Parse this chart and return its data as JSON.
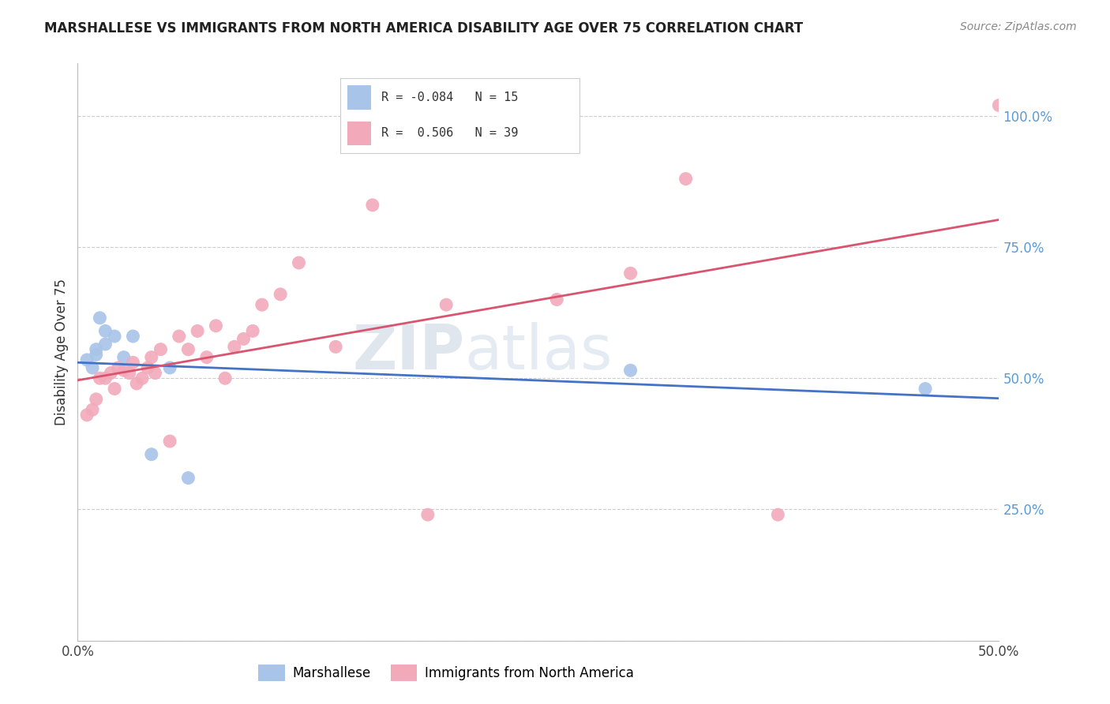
{
  "title": "MARSHALLESE VS IMMIGRANTS FROM NORTH AMERICA DISABILITY AGE OVER 75 CORRELATION CHART",
  "source": "Source: ZipAtlas.com",
  "ylabel_label": "Disability Age Over 75",
  "x_min": 0.0,
  "x_max": 0.5,
  "y_min": 0.0,
  "y_max": 1.1,
  "x_ticks": [
    0.0,
    0.1,
    0.2,
    0.3,
    0.4,
    0.5
  ],
  "y_ticks": [
    0.0,
    0.25,
    0.5,
    0.75,
    1.0
  ],
  "y_tick_labels": [
    "",
    "25.0%",
    "50.0%",
    "75.0%",
    "100.0%"
  ],
  "legend_blue_label": "Marshallese",
  "legend_pink_label": "Immigrants from North America",
  "R_blue": -0.084,
  "N_blue": 15,
  "R_pink": 0.506,
  "N_pink": 39,
  "blue_color": "#A8C4E8",
  "pink_color": "#F2AABB",
  "blue_line_color": "#4472C4",
  "pink_line_color": "#D9546E",
  "watermark_zip": "ZIP",
  "watermark_atlas": "atlas",
  "blue_scatter_x": [
    0.005,
    0.008,
    0.01,
    0.01,
    0.012,
    0.015,
    0.015,
    0.02,
    0.025,
    0.03,
    0.04,
    0.05,
    0.06,
    0.3,
    0.46
  ],
  "blue_scatter_y": [
    0.535,
    0.52,
    0.545,
    0.555,
    0.615,
    0.59,
    0.565,
    0.58,
    0.54,
    0.58,
    0.355,
    0.52,
    0.31,
    0.515,
    0.48
  ],
  "pink_scatter_x": [
    0.005,
    0.008,
    0.01,
    0.012,
    0.015,
    0.018,
    0.02,
    0.022,
    0.025,
    0.028,
    0.03,
    0.032,
    0.035,
    0.038,
    0.04,
    0.042,
    0.045,
    0.05,
    0.055,
    0.06,
    0.065,
    0.07,
    0.075,
    0.08,
    0.085,
    0.09,
    0.095,
    0.1,
    0.11,
    0.12,
    0.14,
    0.16,
    0.19,
    0.2,
    0.26,
    0.3,
    0.33,
    0.38,
    0.5
  ],
  "pink_scatter_y": [
    0.43,
    0.44,
    0.46,
    0.5,
    0.5,
    0.51,
    0.48,
    0.52,
    0.515,
    0.51,
    0.53,
    0.49,
    0.5,
    0.52,
    0.54,
    0.51,
    0.555,
    0.38,
    0.58,
    0.555,
    0.59,
    0.54,
    0.6,
    0.5,
    0.56,
    0.575,
    0.59,
    0.64,
    0.66,
    0.72,
    0.56,
    0.83,
    0.24,
    0.64,
    0.65,
    0.7,
    0.88,
    0.24,
    1.02
  ]
}
